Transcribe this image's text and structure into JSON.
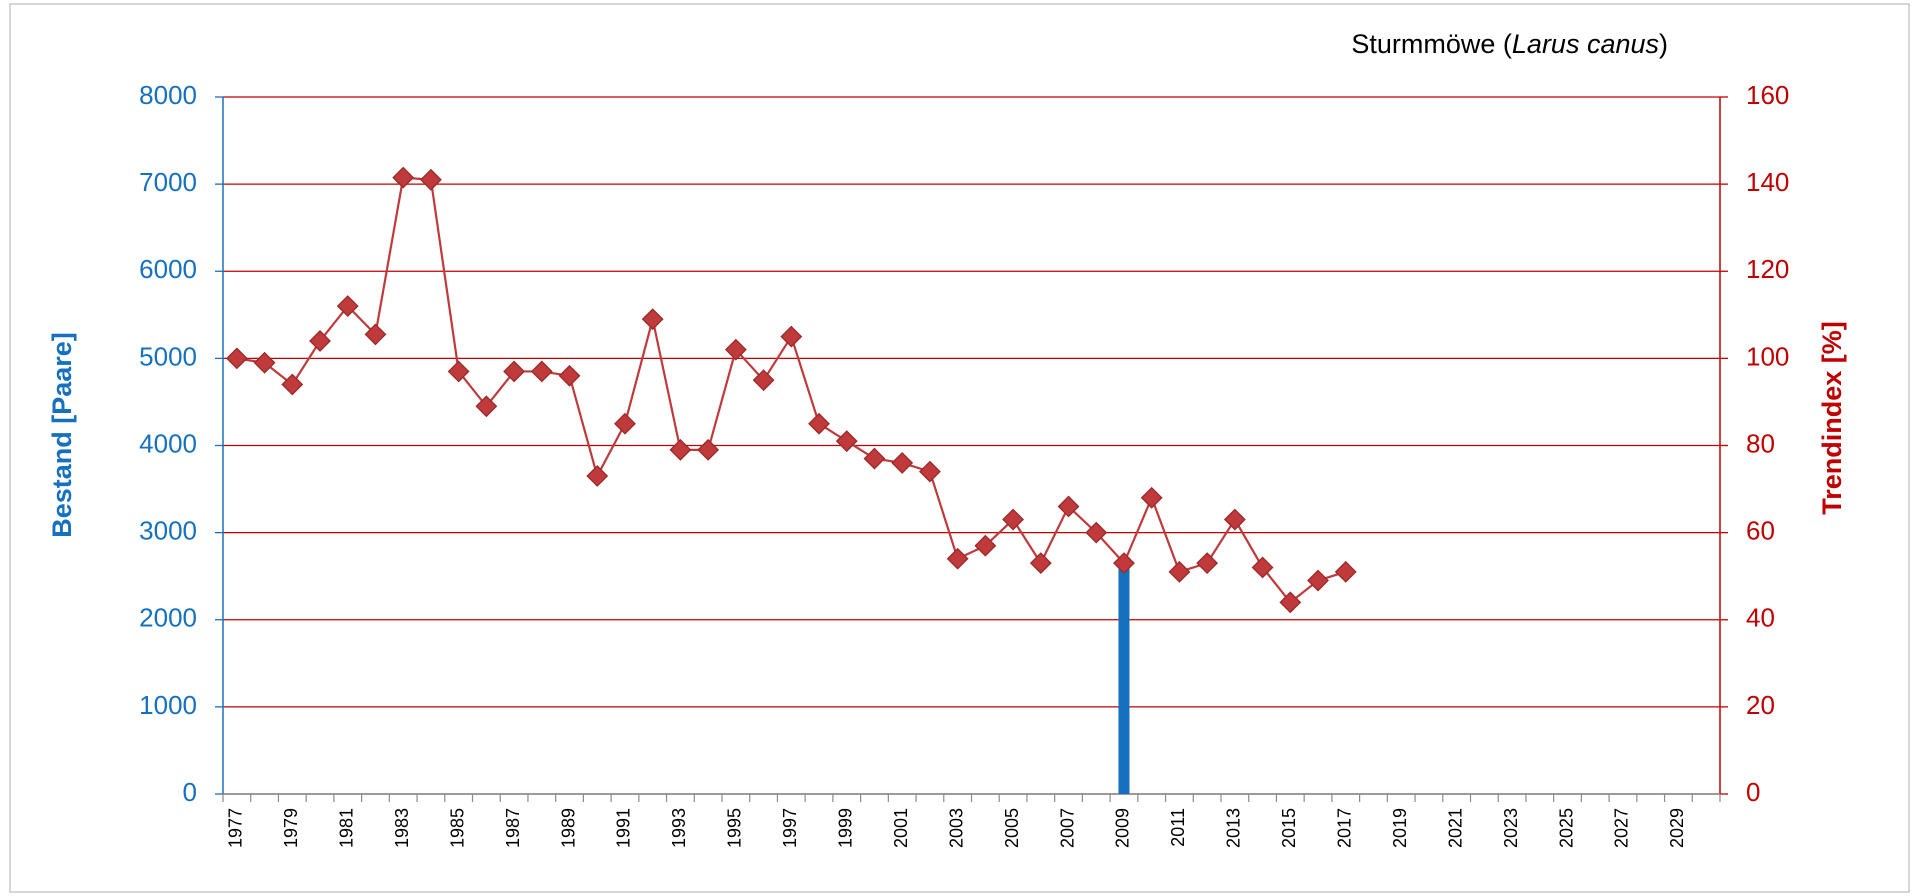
{
  "chart_data": {
    "type": "line",
    "title_parts": [
      "Sturmmöwe  (",
      "Larus canus",
      ")"
    ],
    "ylabel": "Bestand  [Paare]",
    "y2label": "Trendindex  [%]",
    "categories": [
      "1977",
      null,
      "1979",
      null,
      "1981",
      null,
      "1983",
      null,
      "1985",
      null,
      "1987",
      null,
      "1989",
      null,
      "1991",
      null,
      "1993",
      null,
      "1995",
      null,
      "1997",
      null,
      "1999",
      null,
      "2001",
      null,
      "2003",
      null,
      "2005",
      null,
      "2007",
      null,
      "2009",
      null,
      "2011",
      null,
      "2013",
      null,
      "2015",
      null,
      "2017",
      null,
      "2019",
      null,
      "2021",
      null,
      "2023",
      null,
      "2025",
      null,
      "2027",
      null,
      "2029",
      null
    ],
    "series": [
      {
        "name": "Trendindex",
        "type": "line",
        "axis": "y2",
        "color": "#c0393b",
        "values": [
          100,
          99,
          94,
          104,
          112,
          105.5,
          141.5,
          141,
          97,
          89,
          97,
          97,
          96,
          73,
          85,
          109,
          79,
          79,
          102,
          95,
          105,
          85,
          81,
          77,
          76,
          74,
          54,
          57,
          63,
          53,
          66,
          60,
          53,
          68,
          51,
          53,
          63,
          52,
          44,
          49,
          51,
          null,
          null,
          null,
          null,
          null,
          null,
          null,
          null,
          null,
          null,
          null,
          null,
          null
        ]
      },
      {
        "name": "Bestand",
        "type": "bar",
        "axis": "y",
        "color": "#1670c0",
        "values": [
          null,
          null,
          null,
          null,
          null,
          null,
          null,
          null,
          null,
          null,
          null,
          null,
          null,
          null,
          null,
          null,
          null,
          null,
          null,
          null,
          null,
          null,
          null,
          null,
          null,
          null,
          null,
          null,
          null,
          null,
          null,
          null,
          2650,
          null,
          null,
          null,
          null,
          null,
          null,
          null,
          null,
          null,
          null,
          null,
          null,
          null,
          null,
          null,
          null,
          null,
          null,
          null,
          null,
          null
        ]
      }
    ],
    "ylim": [
      0,
      8000
    ],
    "yticks": [
      0,
      1000,
      2000,
      3000,
      4000,
      5000,
      6000,
      7000,
      8000
    ],
    "y2lim": [
      0,
      160
    ],
    "y2ticks": [
      0,
      20,
      40,
      60,
      80,
      100,
      120,
      140,
      160
    ],
    "grid": true,
    "grid_color": "#c00000",
    "y_color": "#1670c0",
    "y2_color": "#c00000"
  }
}
